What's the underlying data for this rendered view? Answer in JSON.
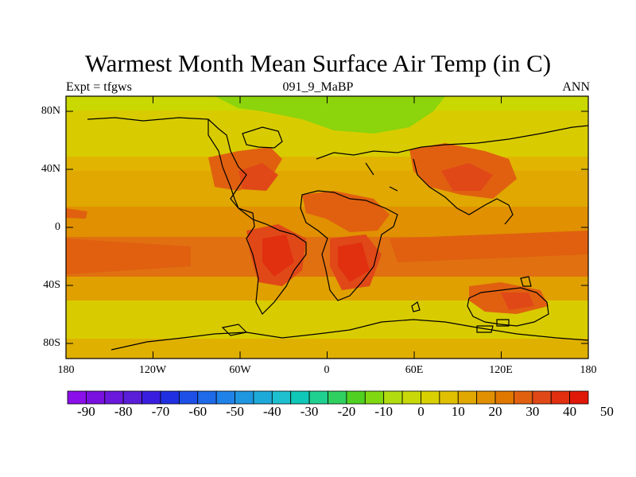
{
  "header": {
    "title": "Warmest Month Mean Surface Air Temp (in C)",
    "left": "Expt = tfgws",
    "center": "091_9_MaBP",
    "right": "ANN"
  },
  "map": {
    "y_ticks": [
      "80N",
      "40N",
      "0",
      "40S",
      "80S"
    ],
    "x_ticks": [
      "180",
      "120W",
      "60W",
      "0",
      "60E",
      "120E",
      "180"
    ]
  },
  "colorbar": {
    "labels": [
      "-90",
      "-80",
      "-70",
      "-60",
      "-50",
      "-40",
      "-30",
      "-20",
      "-10",
      "0",
      "10",
      "20",
      "30",
      "40",
      "50"
    ],
    "colors": [
      "#8a0fe8",
      "#7a10e0",
      "#6a18dc",
      "#5a1ed8",
      "#3a1ee0",
      "#2030e0",
      "#1e50e8",
      "#1e6ae8",
      "#1e82e8",
      "#1e96e0",
      "#1eaad8",
      "#1ec0d0",
      "#10c8b8",
      "#20d090",
      "#30d060",
      "#50d020",
      "#80d810",
      "#b0dc10",
      "#c8d808",
      "#d8d000",
      "#e0c000",
      "#e0a800",
      "#e09000",
      "#e07800",
      "#e06010",
      "#e04818",
      "#e03010",
      "#e01808"
    ]
  }
}
